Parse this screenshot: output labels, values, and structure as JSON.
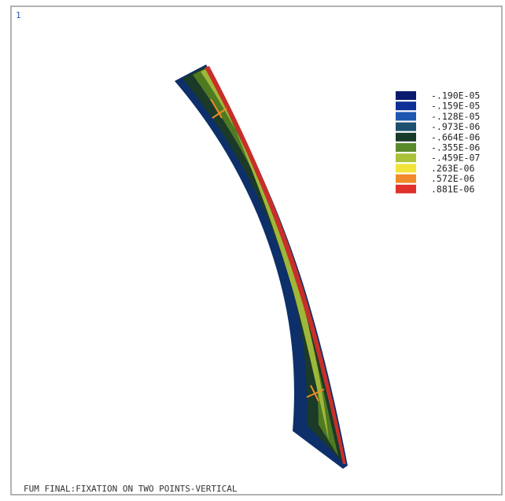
{
  "window_number": "1",
  "legend": [
    {
      "label": "-.190E-05",
      "color": "#0a1a6e"
    },
    {
      "label": "-.159E-05",
      "color": "#0d2f96"
    },
    {
      "label": "-.128E-05",
      "color": "#1f56b0"
    },
    {
      "label": "-.973E-06",
      "color": "#1d4f6e"
    },
    {
      "label": "-.664E-06",
      "color": "#173a2a"
    },
    {
      "label": "-.355E-06",
      "color": "#5a8a2a"
    },
    {
      "label": "-.459E-07",
      "color": "#a9c23a"
    },
    {
      "label": ".263E-06",
      "color": "#f2e33a"
    },
    {
      "label": ".572E-06",
      "color": "#f08a2a"
    },
    {
      "label": ".881E-06",
      "color": "#e0302a"
    }
  ],
  "footer_title": "FUM FINAL:FIXATION ON TWO POINTS-VERTICAL"
}
